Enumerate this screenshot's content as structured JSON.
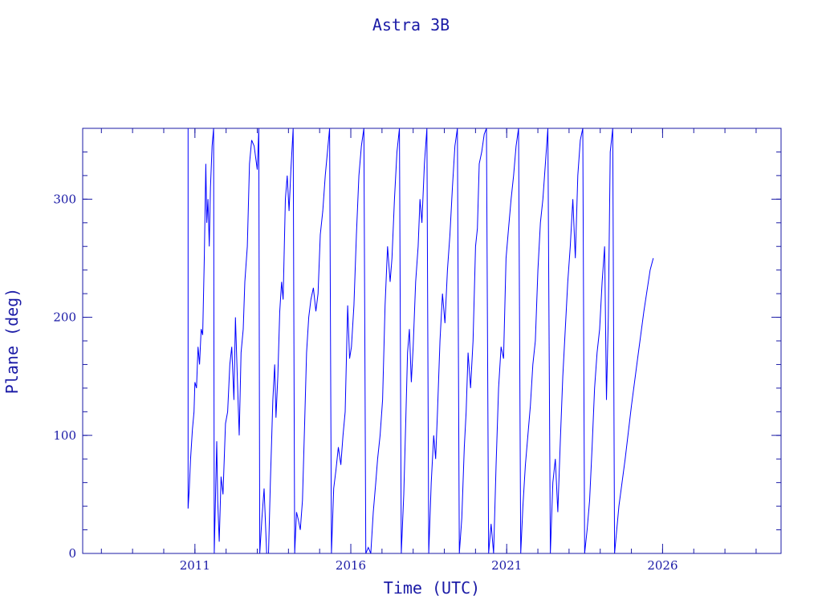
{
  "chart_data": {
    "type": "line",
    "title": "Astra 3B",
    "xlabel": "Time (UTC)",
    "ylabel": "Plane (deg)",
    "xlim": [
      2007.4,
      2029.8
    ],
    "ylim": [
      0,
      360
    ],
    "xticks": [
      2011,
      2016,
      2021,
      2026
    ],
    "yticks": [
      0,
      100,
      200,
      300
    ],
    "grid": false,
    "colors": {
      "line": "#0000ff",
      "axes": "#1a1aa6"
    },
    "series": [
      {
        "values": [
          [
            2010.78,
            320
          ],
          [
            2010.78,
            360
          ],
          [
            2010.78,
            38
          ],
          [
            2010.82,
            55
          ],
          [
            2010.86,
            80
          ],
          [
            2010.92,
            105
          ],
          [
            2010.97,
            120
          ],
          [
            2011.0,
            145
          ],
          [
            2011.05,
            140
          ],
          [
            2011.1,
            175
          ],
          [
            2011.15,
            160
          ],
          [
            2011.2,
            190
          ],
          [
            2011.25,
            185
          ],
          [
            2011.3,
            250
          ],
          [
            2011.35,
            330
          ],
          [
            2011.38,
            280
          ],
          [
            2011.42,
            300
          ],
          [
            2011.46,
            260
          ],
          [
            2011.5,
            310
          ],
          [
            2011.55,
            345
          ],
          [
            2011.6,
            360
          ],
          [
            2011.62,
            0
          ],
          [
            2011.7,
            95
          ],
          [
            2011.73,
            45
          ],
          [
            2011.78,
            10
          ],
          [
            2011.84,
            65
          ],
          [
            2011.9,
            50
          ],
          [
            2011.98,
            110
          ],
          [
            2012.05,
            120
          ],
          [
            2012.12,
            160
          ],
          [
            2012.18,
            175
          ],
          [
            2012.25,
            130
          ],
          [
            2012.3,
            200
          ],
          [
            2012.36,
            150
          ],
          [
            2012.42,
            100
          ],
          [
            2012.48,
            170
          ],
          [
            2012.55,
            190
          ],
          [
            2012.6,
            230
          ],
          [
            2012.68,
            260
          ],
          [
            2012.75,
            330
          ],
          [
            2012.82,
            350
          ],
          [
            2012.9,
            345
          ],
          [
            2013.0,
            325
          ],
          [
            2013.05,
            360
          ],
          [
            2013.08,
            0
          ],
          [
            2013.15,
            30
          ],
          [
            2013.22,
            55
          ],
          [
            2013.3,
            0
          ],
          [
            2013.36,
            0
          ],
          [
            2013.42,
            60
          ],
          [
            2013.5,
            130
          ],
          [
            2013.56,
            160
          ],
          [
            2013.6,
            115
          ],
          [
            2013.66,
            150
          ],
          [
            2013.72,
            205
          ],
          [
            2013.78,
            230
          ],
          [
            2013.83,
            215
          ],
          [
            2013.9,
            300
          ],
          [
            2013.96,
            320
          ],
          [
            2014.02,
            290
          ],
          [
            2014.08,
            325
          ],
          [
            2014.15,
            360
          ],
          [
            2014.2,
            0
          ],
          [
            2014.26,
            35
          ],
          [
            2014.32,
            28
          ],
          [
            2014.38,
            20
          ],
          [
            2014.45,
            45
          ],
          [
            2014.52,
            110
          ],
          [
            2014.58,
            170
          ],
          [
            2014.65,
            200
          ],
          [
            2014.72,
            215
          ],
          [
            2014.8,
            225
          ],
          [
            2014.88,
            205
          ],
          [
            2014.95,
            220
          ],
          [
            2015.02,
            270
          ],
          [
            2015.1,
            290
          ],
          [
            2015.18,
            320
          ],
          [
            2015.25,
            340
          ],
          [
            2015.32,
            360
          ],
          [
            2015.38,
            0
          ],
          [
            2015.45,
            55
          ],
          [
            2015.52,
            70
          ],
          [
            2015.6,
            90
          ],
          [
            2015.68,
            75
          ],
          [
            2015.75,
            100
          ],
          [
            2015.82,
            120
          ],
          [
            2015.9,
            210
          ],
          [
            2015.96,
            165
          ],
          [
            2016.02,
            175
          ],
          [
            2016.1,
            210
          ],
          [
            2016.18,
            270
          ],
          [
            2016.26,
            320
          ],
          [
            2016.34,
            345
          ],
          [
            2016.42,
            360
          ],
          [
            2016.48,
            0
          ],
          [
            2016.56,
            5
          ],
          [
            2016.64,
            0
          ],
          [
            2016.72,
            35
          ],
          [
            2016.8,
            60
          ],
          [
            2016.86,
            80
          ],
          [
            2016.94,
            100
          ],
          [
            2017.02,
            130
          ],
          [
            2017.1,
            210
          ],
          [
            2017.18,
            260
          ],
          [
            2017.26,
            230
          ],
          [
            2017.32,
            250
          ],
          [
            2017.4,
            300
          ],
          [
            2017.48,
            340
          ],
          [
            2017.56,
            360
          ],
          [
            2017.62,
            0
          ],
          [
            2017.7,
            50
          ],
          [
            2017.76,
            110
          ],
          [
            2017.82,
            170
          ],
          [
            2017.88,
            190
          ],
          [
            2017.94,
            145
          ],
          [
            2018.0,
            175
          ],
          [
            2018.08,
            230
          ],
          [
            2018.16,
            260
          ],
          [
            2018.22,
            300
          ],
          [
            2018.28,
            280
          ],
          [
            2018.36,
            330
          ],
          [
            2018.44,
            360
          ],
          [
            2018.5,
            0
          ],
          [
            2018.58,
            60
          ],
          [
            2018.66,
            100
          ],
          [
            2018.72,
            80
          ],
          [
            2018.78,
            120
          ],
          [
            2018.86,
            180
          ],
          [
            2018.94,
            220
          ],
          [
            2019.02,
            195
          ],
          [
            2019.1,
            240
          ],
          [
            2019.18,
            270
          ],
          [
            2019.26,
            310
          ],
          [
            2019.34,
            345
          ],
          [
            2019.42,
            360
          ],
          [
            2019.48,
            0
          ],
          [
            2019.56,
            30
          ],
          [
            2019.64,
            90
          ],
          [
            2019.7,
            120
          ],
          [
            2019.76,
            170
          ],
          [
            2019.84,
            140
          ],
          [
            2019.92,
            180
          ],
          [
            2020.0,
            260
          ],
          [
            2020.06,
            275
          ],
          [
            2020.12,
            330
          ],
          [
            2020.2,
            340
          ],
          [
            2020.28,
            355
          ],
          [
            2020.35,
            360
          ],
          [
            2020.42,
            0
          ],
          [
            2020.5,
            25
          ],
          [
            2020.58,
            0
          ],
          [
            2020.66,
            75
          ],
          [
            2020.74,
            140
          ],
          [
            2020.82,
            175
          ],
          [
            2020.9,
            165
          ],
          [
            2020.98,
            250
          ],
          [
            2021.06,
            275
          ],
          [
            2021.14,
            300
          ],
          [
            2021.22,
            320
          ],
          [
            2021.3,
            345
          ],
          [
            2021.38,
            360
          ],
          [
            2021.45,
            0
          ],
          [
            2021.52,
            40
          ],
          [
            2021.6,
            75
          ],
          [
            2021.68,
            100
          ],
          [
            2021.76,
            125
          ],
          [
            2021.84,
            160
          ],
          [
            2021.92,
            180
          ],
          [
            2022.0,
            240
          ],
          [
            2022.08,
            280
          ],
          [
            2022.16,
            300
          ],
          [
            2022.24,
            330
          ],
          [
            2022.32,
            360
          ],
          [
            2022.4,
            0
          ],
          [
            2022.48,
            60
          ],
          [
            2022.56,
            80
          ],
          [
            2022.64,
            35
          ],
          [
            2022.72,
            95
          ],
          [
            2022.8,
            150
          ],
          [
            2022.88,
            190
          ],
          [
            2022.96,
            230
          ],
          [
            2023.04,
            260
          ],
          [
            2023.12,
            300
          ],
          [
            2023.2,
            250
          ],
          [
            2023.28,
            320
          ],
          [
            2023.36,
            350
          ],
          [
            2023.44,
            360
          ],
          [
            2023.5,
            0
          ],
          [
            2023.58,
            20
          ],
          [
            2023.66,
            45
          ],
          [
            2023.74,
            90
          ],
          [
            2023.82,
            140
          ],
          [
            2023.9,
            170
          ],
          [
            2023.98,
            190
          ],
          [
            2024.06,
            230
          ],
          [
            2024.14,
            260
          ],
          [
            2024.2,
            130
          ],
          [
            2024.26,
            200
          ],
          [
            2024.32,
            340
          ],
          [
            2024.4,
            360
          ],
          [
            2024.46,
            0
          ],
          [
            2024.6,
            40
          ],
          [
            2024.8,
            80
          ],
          [
            2025.0,
            125
          ],
          [
            2025.2,
            165
          ],
          [
            2025.4,
            205
          ],
          [
            2025.6,
            240
          ],
          [
            2025.7,
            250
          ]
        ]
      }
    ]
  }
}
